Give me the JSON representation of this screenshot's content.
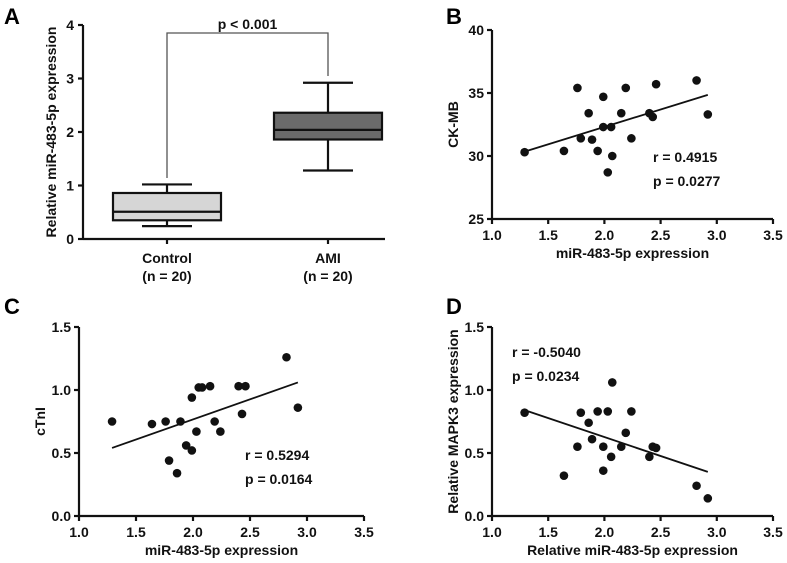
{
  "chart_data": [
    {
      "panel": "A",
      "type": "box",
      "ylabel": "Relative miR-483-5p expression",
      "ylim": [
        0,
        4
      ],
      "yticks": [
        "0",
        "1",
        "2",
        "3",
        "4"
      ],
      "categories": [
        {
          "name": "Control",
          "n_label": "(n = 20)",
          "min": 0.24,
          "q1": 0.35,
          "median": 0.51,
          "q3": 0.86,
          "max": 1.02,
          "color": "#d6d6d6"
        },
        {
          "name": "AMI",
          "n_label": "(n = 20)",
          "min": 1.28,
          "q1": 1.86,
          "median": 2.04,
          "q3": 2.36,
          "max": 2.92,
          "color": "#6b6b6b"
        }
      ],
      "annotation": "p < 0.001"
    },
    {
      "panel": "B",
      "type": "scatter",
      "xlabel": "miR-483-5p expression",
      "ylabel": "CK-MB",
      "xlim": [
        1.0,
        3.5
      ],
      "ylim": [
        25,
        40
      ],
      "xticks": [
        "1.0",
        "1.5",
        "2.0",
        "2.5",
        "3.0",
        "3.5"
      ],
      "yticks": [
        "25",
        "30",
        "35",
        "40"
      ],
      "points": [
        [
          1.29,
          30.3
        ],
        [
          1.64,
          30.4
        ],
        [
          1.76,
          35.4
        ],
        [
          1.79,
          31.4
        ],
        [
          1.86,
          33.4
        ],
        [
          1.89,
          31.3
        ],
        [
          1.94,
          30.4
        ],
        [
          1.99,
          34.7
        ],
        [
          1.99,
          32.3
        ],
        [
          2.03,
          28.7
        ],
        [
          2.06,
          32.3
        ],
        [
          2.07,
          30.0
        ],
        [
          2.15,
          33.4
        ],
        [
          2.19,
          35.4
        ],
        [
          2.24,
          31.4
        ],
        [
          2.4,
          33.4
        ],
        [
          2.43,
          33.1
        ],
        [
          2.46,
          35.7
        ],
        [
          2.82,
          36.0
        ],
        [
          2.92,
          33.3
        ]
      ],
      "fit": [
        [
          1.29,
          30.35
        ],
        [
          2.92,
          34.85
        ]
      ],
      "r": "r = 0.4915",
      "p": "p = 0.0277"
    },
    {
      "panel": "C",
      "type": "scatter",
      "xlabel": "miR-483-5p expression",
      "ylabel": "cTnI",
      "xlim": [
        1.0,
        3.5
      ],
      "ylim": [
        0,
        1.5
      ],
      "xticks": [
        "1.0",
        "1.5",
        "2.0",
        "2.5",
        "3.0",
        "3.5"
      ],
      "yticks": [
        "0.0",
        "0.5",
        "1.0",
        "1.5"
      ],
      "points": [
        [
          1.29,
          0.75
        ],
        [
          1.64,
          0.73
        ],
        [
          1.76,
          0.75
        ],
        [
          1.79,
          0.44
        ],
        [
          1.86,
          0.34
        ],
        [
          1.89,
          0.75
        ],
        [
          1.94,
          0.56
        ],
        [
          1.99,
          0.94
        ],
        [
          1.99,
          0.52
        ],
        [
          2.03,
          0.67
        ],
        [
          2.05,
          1.02
        ],
        [
          2.08,
          1.02
        ],
        [
          2.15,
          1.03
        ],
        [
          2.19,
          0.75
        ],
        [
          2.24,
          0.67
        ],
        [
          2.4,
          1.03
        ],
        [
          2.43,
          0.81
        ],
        [
          2.46,
          1.03
        ],
        [
          2.82,
          1.26
        ],
        [
          2.92,
          0.86
        ]
      ],
      "fit": [
        [
          1.29,
          0.54
        ],
        [
          2.92,
          1.06
        ]
      ],
      "r": "r = 0.5294",
      "p": "p = 0.0164"
    },
    {
      "panel": "D",
      "type": "scatter",
      "xlabel": "Relative miR-483-5p expression",
      "ylabel": "Relative MAPK3 expression",
      "xlim": [
        1.0,
        3.5
      ],
      "ylim": [
        0,
        1.5
      ],
      "xticks": [
        "1.0",
        "1.5",
        "2.0",
        "2.5",
        "3.0",
        "3.5"
      ],
      "yticks": [
        "0.0",
        "0.5",
        "1.0",
        "1.5"
      ],
      "points": [
        [
          1.29,
          0.82
        ],
        [
          1.64,
          0.32
        ],
        [
          1.76,
          0.55
        ],
        [
          1.79,
          0.82
        ],
        [
          1.86,
          0.74
        ],
        [
          1.89,
          0.61
        ],
        [
          1.94,
          0.83
        ],
        [
          1.99,
          0.55
        ],
        [
          1.99,
          0.36
        ],
        [
          2.03,
          0.83
        ],
        [
          2.07,
          1.06
        ],
        [
          2.06,
          0.47
        ],
        [
          2.15,
          0.55
        ],
        [
          2.19,
          0.66
        ],
        [
          2.24,
          0.83
        ],
        [
          2.4,
          0.47
        ],
        [
          2.43,
          0.55
        ],
        [
          2.46,
          0.54
        ],
        [
          2.82,
          0.24
        ],
        [
          2.92,
          0.14
        ]
      ],
      "fit": [
        [
          1.29,
          0.84
        ],
        [
          2.92,
          0.35
        ]
      ],
      "r": "r = -0.5040",
      "p": "p = 0.0234"
    }
  ]
}
